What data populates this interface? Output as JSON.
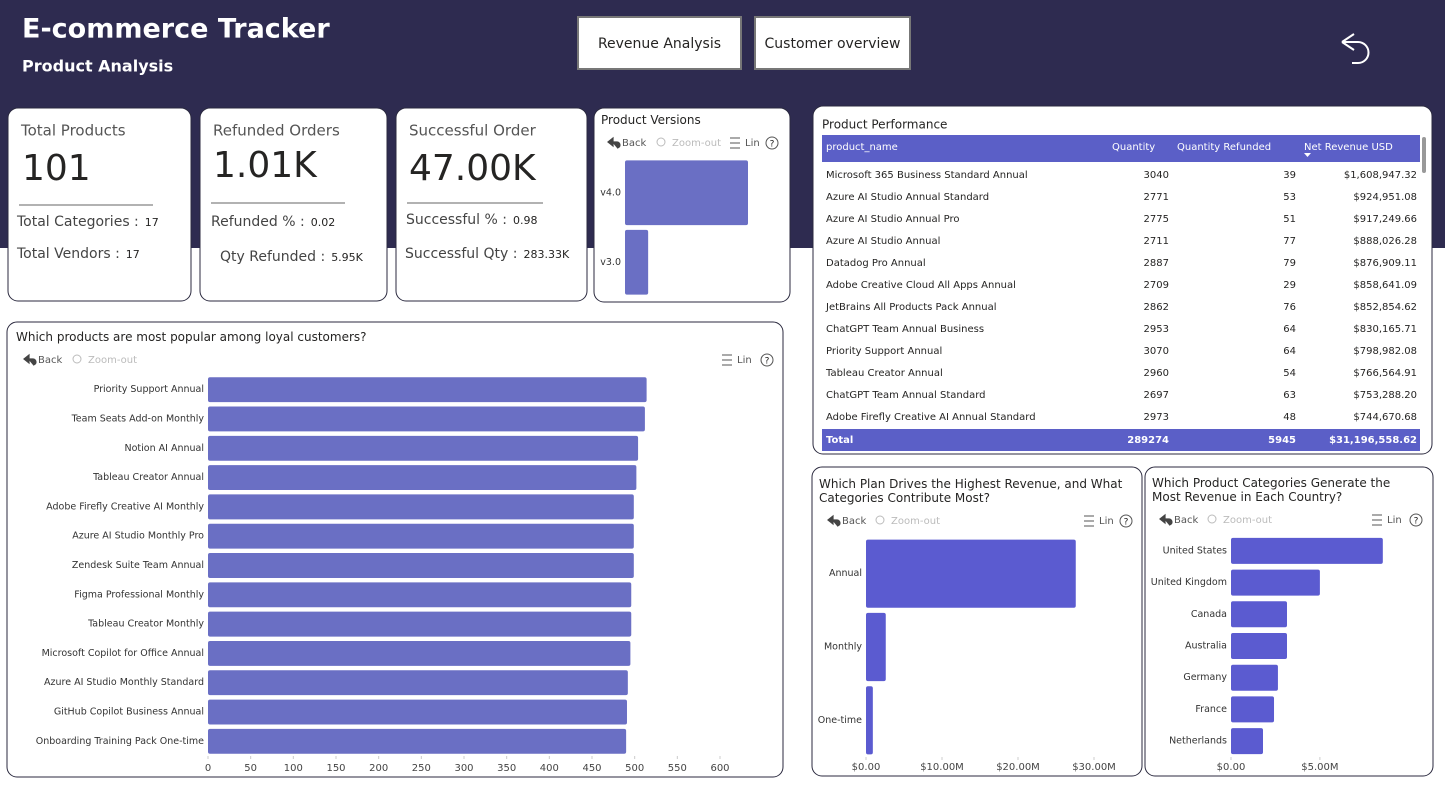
{
  "header": {
    "title": "E-commerce Tracker",
    "subtitle": "Product Analysis",
    "nav": [
      "Revenue Analysis",
      "Customer overview"
    ]
  },
  "cards": [
    {
      "title": "Total Products",
      "value": "101",
      "rows": [
        {
          "label": "Total Categories :",
          "value": "17"
        },
        {
          "label": "Total Vendors :",
          "value": "17"
        }
      ]
    },
    {
      "title": "Refunded Orders",
      "value": "1.01K",
      "rows": [
        {
          "label": "Refunded % :",
          "value": "0.02"
        },
        {
          "label": "Qty Refunded :",
          "value": "5.95K"
        }
      ]
    },
    {
      "title": "Successful Order",
      "value": "47.00K",
      "rows": [
        {
          "label": "Successful % :",
          "value": "0.98"
        },
        {
          "label": "Successful Qty :",
          "value": "283.33K"
        }
      ]
    }
  ],
  "toolbar": {
    "back": "Back",
    "zoom_out": "Zoom-out",
    "lin": "Lin",
    "help": "?"
  },
  "table": {
    "title": "Product Performance",
    "columns": [
      "product_name",
      "Quantity",
      "Quantity Refunded",
      "Net Revenue USD"
    ],
    "rows": [
      [
        "Microsoft 365 Business Standard Annual",
        "3040",
        "39",
        "$1,608,947.32"
      ],
      [
        "Azure AI Studio Annual Standard",
        "2771",
        "53",
        "$924,951.08"
      ],
      [
        "Azure AI Studio Annual Pro",
        "2775",
        "51",
        "$917,249.66"
      ],
      [
        "Azure AI Studio Annual",
        "2711",
        "77",
        "$888,026.28"
      ],
      [
        "Datadog Pro Annual",
        "2887",
        "79",
        "$876,909.11"
      ],
      [
        "Adobe Creative Cloud All Apps Annual",
        "2709",
        "29",
        "$858,641.09"
      ],
      [
        "JetBrains All Products Pack Annual",
        "2862",
        "76",
        "$852,854.62"
      ],
      [
        "ChatGPT Team Annual Business",
        "2953",
        "64",
        "$830,165.71"
      ],
      [
        "Priority Support Annual",
        "3070",
        "64",
        "$798,982.08"
      ],
      [
        "Tableau Creator Annual",
        "2960",
        "54",
        "$766,564.91"
      ],
      [
        "ChatGPT Team Annual Standard",
        "2697",
        "63",
        "$753,288.20"
      ],
      [
        "Adobe Firefly Creative AI Annual Standard",
        "2973",
        "48",
        "$744,670.68"
      ]
    ],
    "total": [
      "Total",
      "289274",
      "5945",
      "$31,196,558.62"
    ]
  },
  "chart_data": [
    {
      "type": "bar",
      "title": "Which products are most popular among loyal customers?",
      "color": "#6a6fc4",
      "categories": [
        "Priority Support Annual",
        "Team Seats Add-on Monthly",
        "Notion AI Annual",
        "Tableau Creator Annual",
        "Adobe Firefly Creative AI Monthly",
        "Azure AI Studio Monthly Pro",
        "Zendesk Suite Team Annual",
        "Figma Professional Monthly",
        "Tableau Creator Monthly",
        "Microsoft Copilot for Office Annual",
        "Azure AI Studio Monthly Standard",
        "GitHub Copilot Business Annual",
        "Onboarding Training Pack One-time"
      ],
      "values": [
        514,
        512,
        504,
        502,
        499,
        499,
        499,
        496,
        496,
        495,
        492,
        491,
        490
      ],
      "xlim": [
        0,
        600
      ],
      "xticks": [
        0,
        50,
        100,
        150,
        200,
        250,
        300,
        350,
        400,
        450,
        500,
        550,
        600
      ]
    },
    {
      "type": "bar",
      "title": "Product Versions",
      "color": "#6a6fc4",
      "categories": [
        "v4.0",
        "v3.0"
      ],
      "values": [
        85,
        16
      ]
    },
    {
      "type": "bar",
      "title": "Which Plan Drives the Highest Revenue, and What Categories Contribute Most?",
      "color": "#5b5bd0",
      "categories": [
        "Annual",
        "Monthly",
        "One-time"
      ],
      "values": [
        27600000,
        2600000,
        900000
      ],
      "xlim": [
        0,
        30000000
      ],
      "xticks": [
        {
          "value": 0,
          "label": "$0.00"
        },
        {
          "value": 10000000,
          "label": "$10.00M"
        },
        {
          "value": 20000000,
          "label": "$20.00M"
        },
        {
          "value": 30000000,
          "label": "$30.00M"
        }
      ]
    },
    {
      "type": "bar",
      "title": "Which Product Categories Generate the Most Revenue in Each Country?",
      "color": "#5b5bd0",
      "categories": [
        "United States",
        "United Kingdom",
        "Canada",
        "Australia",
        "Germany",
        "France",
        "Netherlands"
      ],
      "values": [
        8540000,
        5000000,
        3150000,
        3150000,
        2640000,
        2420000,
        1800000
      ],
      "xlim": [
        0,
        9000000
      ],
      "xticks": [
        {
          "value": 0,
          "label": "$0.00"
        },
        {
          "value": 5000000,
          "label": "$5.00M"
        }
      ]
    }
  ]
}
